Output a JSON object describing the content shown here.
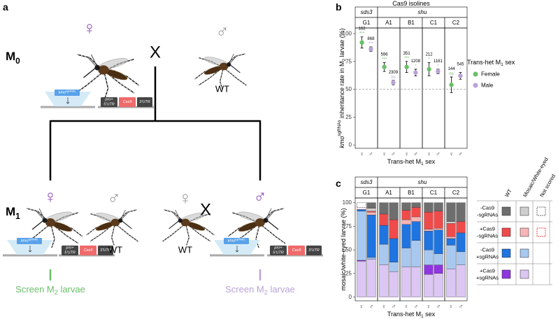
{
  "panel_labels": {
    "a": "a",
    "b": "b",
    "c": "c"
  },
  "diagram": {
    "generations": [
      {
        "label": "M",
        "sub": "0"
      },
      {
        "label": "M",
        "sub": "1"
      }
    ],
    "female": "♀",
    "male": "♂",
    "cross": "X",
    "wild_type": "WT",
    "parent_color": "#8e4fb8",
    "wt_color": "#9a9a9a",
    "construct": {
      "gene": "kmo",
      "gene_sup": "sgRNAs",
      "promoter": "pro+",
      "utr5": "5'UTR",
      "cas9": "Cas9",
      "utr3": "3'UTR"
    },
    "screens": [
      {
        "text": "Screen M",
        "sub": "2",
        "tail": " larvae",
        "color": "#6abf69"
      },
      {
        "text": "Screen M",
        "sub": "2",
        "tail": " larvae",
        "color": "#b9a3d6"
      }
    ]
  },
  "chart_data": [
    {
      "type": "dot-errorbar",
      "title": "Cas9 isolines",
      "groups": [
        {
          "label": "sds3",
          "categories": [
            "G1"
          ]
        },
        {
          "label": "shu",
          "categories": [
            "A1",
            "B1",
            "C1",
            "C2"
          ]
        }
      ],
      "y_label": {
        "gene": "kmo",
        "gene_sup": "sgRNAs",
        "text": " inheritance rate in M",
        "sub": "2",
        "tail": " larvae (%)"
      },
      "x_label": {
        "text": "Trans-het M",
        "sub": "1",
        "tail": " sex"
      },
      "ylim": [
        -3,
        105
      ],
      "yticks": [
        0,
        25,
        50,
        75,
        100
      ],
      "reference_line": 50,
      "series": [
        {
          "name": "Female",
          "symbol": "♀",
          "color": "#6abf69",
          "values": [
            92,
            70,
            70,
            68,
            54
          ],
          "errors": [
            5,
            4,
            5,
            6,
            7
          ],
          "n": [
            162,
            596,
            351,
            212,
            144
          ],
          "significance": [
            "***",
            "***",
            "***",
            "*",
            "ns"
          ]
        },
        {
          "name": "Male",
          "symbol": "♂",
          "color": "#b9a3d6",
          "values": [
            86,
            56,
            65,
            66,
            62
          ],
          "errors": [
            2,
            2,
            3,
            2,
            3
          ],
          "n": [
            868,
            2309,
            1208,
            1161,
            545
          ],
          "significance": [
            "***",
            "ns",
            "*",
            "*",
            "*"
          ]
        }
      ],
      "legend": {
        "title": {
          "text": "Trans-het M",
          "sub": "1",
          "tail": " sex"
        }
      }
    },
    {
      "type": "stacked-bar",
      "groups": [
        {
          "label": "sds3",
          "categories": [
            "G1"
          ]
        },
        {
          "label": "shu",
          "categories": [
            "A1",
            "B1",
            "C1",
            "C2"
          ]
        }
      ],
      "x_tick_labels": [
        "♀",
        "♂"
      ],
      "y_label": "mosaic/white-eyed larvae (%)",
      "x_label": {
        "text": "Trans-het M",
        "sub": "1",
        "tail": " sex"
      },
      "ylim": [
        -4,
        105
      ],
      "yticks": [
        0,
        25,
        50,
        75,
        100
      ],
      "legend": {
        "columns": [
          "WT",
          "Mosaic/White-eyed",
          "Not scored"
        ]
      },
      "series_groups": [
        {
          "label": [
            "-Cas9",
            "-sgRNAs"
          ],
          "wt": {
            "color": "#6e6e6e",
            "values": [
              0,
              6,
              12,
              18,
              8,
              5,
              10,
              9,
              20,
              20
            ]
          },
          "mosaic": {
            "color": "#cfcfcf",
            "values": [
              0,
              3,
              0,
              0,
              0,
              0,
              0,
              0,
              2,
              0
            ]
          },
          "not_scored": {
            "color": "#6e6e6e",
            "values": [
              5,
              0,
              0,
              0,
              0,
              0,
              0,
              0,
              0,
              0
            ]
          }
        },
        {
          "label": [
            "+Cas9",
            "-sgRNAs"
          ],
          "wt": {
            "color": "#f04b4b",
            "values": [
              0,
              1,
              12,
              20,
              10,
              10,
              18,
              18,
              14,
              12
            ]
          },
          "mosaic": {
            "color": "#f7b5b5",
            "values": [
              0,
              3,
              0,
              0,
              5,
              5,
              2,
              2,
              2,
              0
            ]
          },
          "not_scored": {
            "color": "#f04b4b",
            "values": [
              2,
              0,
              0,
              0,
              0,
              0,
              0,
              0,
              0,
              0
            ]
          }
        },
        {
          "label": [
            "-Cas9",
            "+sgRNAs"
          ],
          "wt": {
            "color": "#1f74e0",
            "values": [
              2,
              45,
              20,
              25,
              25,
              20,
              20,
              25,
              7,
              20
            ]
          },
          "mosaic": {
            "color": "#a8c8ef",
            "values": [
              52,
              2,
              22,
              10,
              20,
              28,
              16,
              12,
              25,
              14
            ]
          }
        },
        {
          "label": [
            "+Cas9",
            "+sgRNAs"
          ],
          "wt": {
            "color": "#9036e0",
            "values": [
              1,
              0,
              0,
              0,
              0,
              0,
              10,
              9,
              0,
              0
            ]
          },
          "mosaic": {
            "color": "#dcc6f3",
            "values": [
              38,
              40,
              34,
              27,
              32,
              32,
              24,
              25,
              30,
              34
            ]
          }
        }
      ]
    }
  ]
}
